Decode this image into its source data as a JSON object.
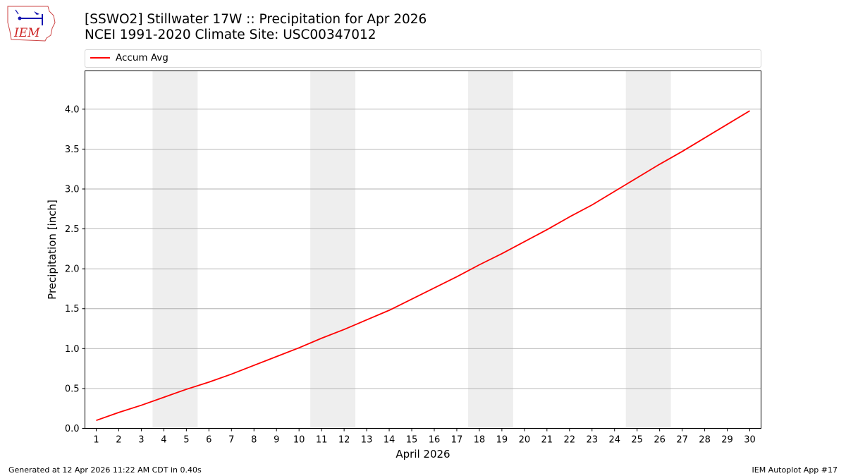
{
  "header": {
    "title_line1": "[SSWO2] Stillwater 17W :: Precipitation for Apr 2026",
    "title_line2": "NCEI 1991-2020 Climate Site: USC00347012"
  },
  "logo": {
    "text": "IEM",
    "icon": "iem-iowa-logo-icon"
  },
  "footer": {
    "generated": "Generated at 12 Apr 2026 11:22 AM CDT in 0.40s",
    "app": "IEM Autoplot App #17"
  },
  "chart_data": {
    "type": "line",
    "xlabel": "April 2026",
    "ylabel": "Precipitation [inch]",
    "x": [
      1,
      2,
      3,
      4,
      5,
      6,
      7,
      8,
      9,
      10,
      11,
      12,
      13,
      14,
      15,
      16,
      17,
      18,
      19,
      20,
      21,
      22,
      23,
      24,
      25,
      26,
      27,
      28,
      29,
      30
    ],
    "xlim": [
      0.5,
      30.5
    ],
    "ylim": [
      0,
      4.48
    ],
    "yticks": [
      "0.0",
      "0.5",
      "1.0",
      "1.5",
      "2.0",
      "2.5",
      "3.0",
      "3.5",
      "4.0"
    ],
    "grid": "y",
    "legend": "top",
    "weekend_shading": [
      [
        3.5,
        5.5
      ],
      [
        10.5,
        12.5
      ],
      [
        17.5,
        19.5
      ],
      [
        24.5,
        26.5
      ]
    ],
    "colors": {
      "line": "#ff0000",
      "shade": "#eeeeee",
      "grid": "#b0b0b0"
    },
    "series": [
      {
        "name": "Accum Avg",
        "values": [
          0.1,
          0.2,
          0.29,
          0.39,
          0.49,
          0.58,
          0.68,
          0.79,
          0.9,
          1.01,
          1.13,
          1.24,
          1.36,
          1.48,
          1.62,
          1.76,
          1.9,
          2.05,
          2.19,
          2.34,
          2.49,
          2.65,
          2.8,
          2.97,
          3.14,
          3.31,
          3.47,
          3.64,
          3.81,
          3.98
        ]
      }
    ]
  }
}
